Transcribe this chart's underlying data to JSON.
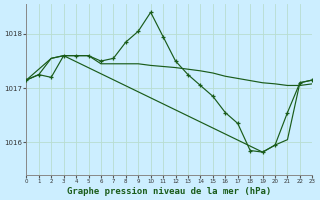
{
  "background_color": "#cceeff",
  "grid_color": "#b8ddd0",
  "line_color": "#1a5c1a",
  "xlabel": "Graphe pression niveau de la mer (hPa)",
  "xlabel_fontsize": 6.5,
  "xlim": [
    0,
    23
  ],
  "ylim": [
    1015.4,
    1018.55
  ],
  "yticks": [
    1016,
    1017,
    1018
  ],
  "xticks": [
    0,
    1,
    2,
    3,
    4,
    5,
    6,
    7,
    8,
    9,
    10,
    11,
    12,
    13,
    14,
    15,
    16,
    17,
    18,
    19,
    20,
    21,
    22,
    23
  ],
  "series1_x": [
    0,
    1,
    2,
    3,
    4,
    5,
    6,
    7,
    8,
    9,
    10,
    11,
    12,
    13,
    14,
    15,
    16,
    17,
    18,
    19,
    20,
    21,
    22,
    23
  ],
  "series1_y": [
    1017.15,
    1017.25,
    1017.2,
    1017.6,
    1017.6,
    1017.6,
    1017.5,
    1017.55,
    1017.85,
    1018.05,
    1018.4,
    1017.95,
    1017.5,
    1017.25,
    1017.05,
    1016.85,
    1016.55,
    1016.35,
    1015.85,
    1015.82,
    1015.95,
    1016.55,
    1017.1,
    1017.15
  ],
  "series2_x": [
    0,
    1,
    2,
    3,
    4,
    5,
    6,
    7,
    8,
    9,
    10,
    11,
    12,
    13,
    14,
    15,
    16,
    17,
    18,
    19,
    20,
    21,
    22,
    23
  ],
  "series2_y": [
    1017.15,
    1017.25,
    1017.55,
    1017.6,
    1017.6,
    1017.6,
    1017.45,
    1017.45,
    1017.45,
    1017.45,
    1017.42,
    1017.4,
    1017.38,
    1017.35,
    1017.32,
    1017.28,
    1017.22,
    1017.18,
    1017.14,
    1017.1,
    1017.08,
    1017.05,
    1017.05,
    1017.08
  ],
  "series3_x": [
    0,
    2,
    3,
    19,
    20,
    21,
    22,
    23
  ],
  "series3_y": [
    1017.15,
    1017.55,
    1017.6,
    1015.82,
    1015.95,
    1016.05,
    1017.1,
    1017.15
  ]
}
